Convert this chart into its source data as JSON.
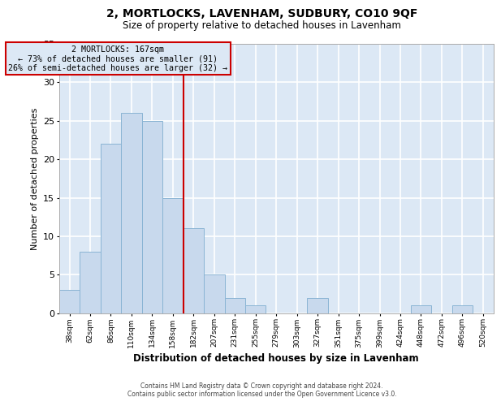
{
  "title": "2, MORTLOCKS, LAVENHAM, SUDBURY, CO10 9QF",
  "subtitle": "Size of property relative to detached houses in Lavenham",
  "xlabel": "Distribution of detached houses by size in Lavenham",
  "ylabel": "Number of detached properties",
  "bar_color": "#c8d9ed",
  "bar_edge_color": "#8ab4d4",
  "plot_bg_color": "#dce8f5",
  "fig_bg_color": "#ffffff",
  "grid_color": "#ffffff",
  "annotation_box_color": "#cc0000",
  "annotation_line_color": "#cc0000",
  "categories": [
    "38sqm",
    "62sqm",
    "86sqm",
    "110sqm",
    "134sqm",
    "158sqm",
    "182sqm",
    "207sqm",
    "231sqm",
    "255sqm",
    "279sqm",
    "303sqm",
    "327sqm",
    "351sqm",
    "375sqm",
    "399sqm",
    "424sqm",
    "448sqm",
    "472sqm",
    "496sqm",
    "520sqm"
  ],
  "values": [
    3,
    8,
    22,
    26,
    25,
    15,
    11,
    5,
    2,
    1,
    0,
    0,
    2,
    0,
    0,
    0,
    0,
    1,
    0,
    1,
    0
  ],
  "ylim": [
    0,
    35
  ],
  "yticks": [
    0,
    5,
    10,
    15,
    20,
    25,
    30,
    35
  ],
  "property_line_x": 5.5,
  "annotation_text_line1": "2 MORTLOCKS: 167sqm",
  "annotation_text_line2": "← 73% of detached houses are smaller (91)",
  "annotation_text_line3": "26% of semi-detached houses are larger (32) →",
  "footer_line1": "Contains HM Land Registry data © Crown copyright and database right 2024.",
  "footer_line2": "Contains public sector information licensed under the Open Government Licence v3.0."
}
